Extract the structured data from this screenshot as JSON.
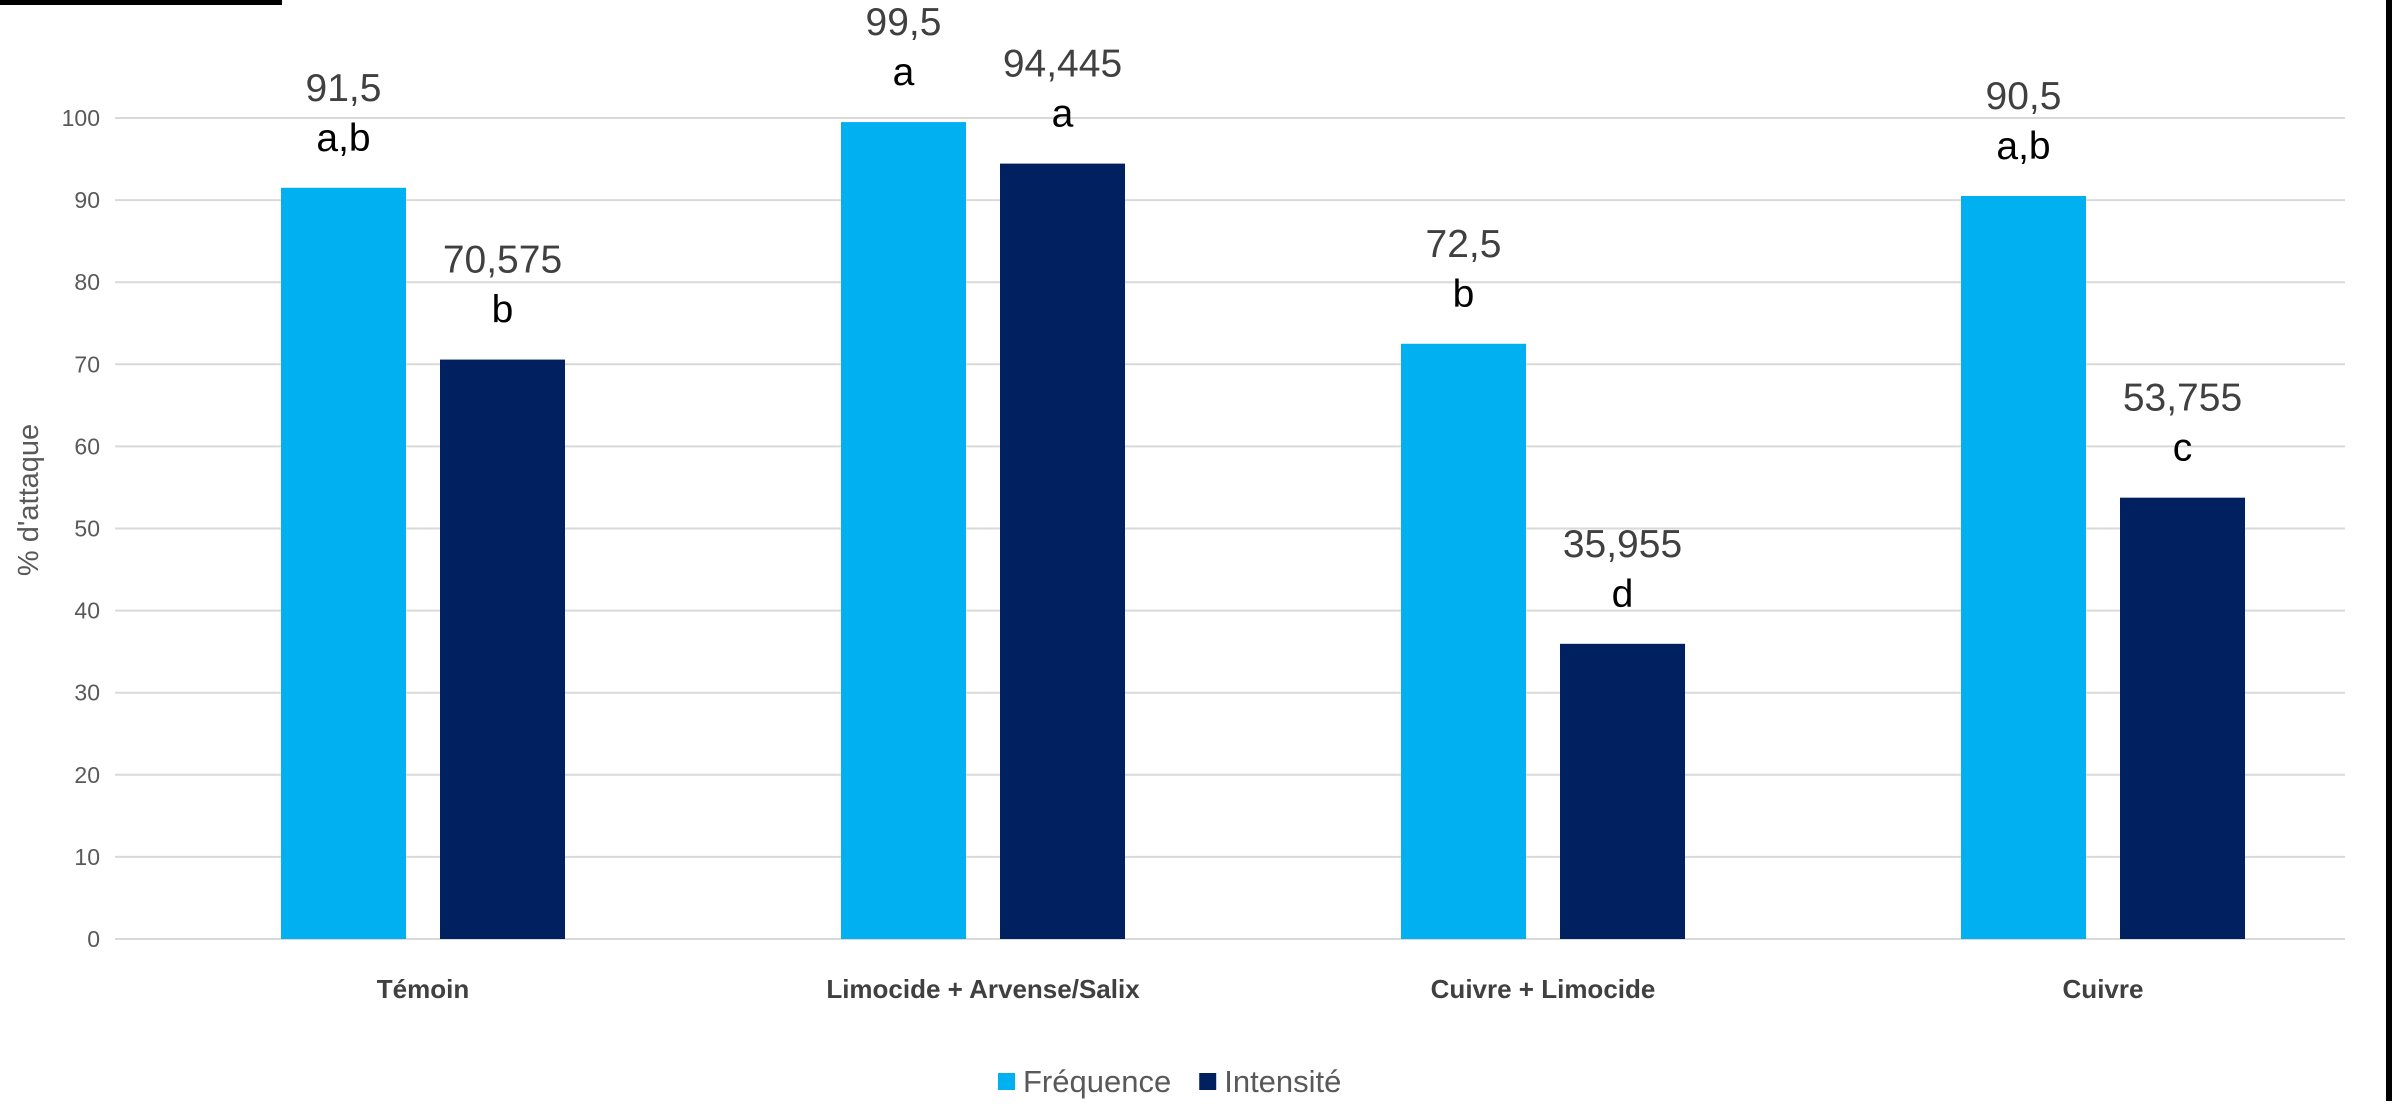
{
  "chart_data": {
    "type": "bar",
    "ylabel": "% d'attaque",
    "ylim": [
      0,
      100
    ],
    "yticks": [
      0,
      10,
      20,
      30,
      40,
      50,
      60,
      70,
      80,
      90,
      100
    ],
    "grid": true,
    "legend_position": "bottom",
    "categories": [
      "Témoin",
      "Limocide + Arvense/Salix",
      "Cuivre + Limocide",
      "Cuivre"
    ],
    "series": [
      {
        "name": "Fréquence",
        "color": "#00b0f0",
        "values": [
          91.5,
          99.5,
          72.5,
          90.5
        ],
        "value_labels": [
          "91,5",
          "99,5",
          "72,5",
          "90,5"
        ],
        "letters": [
          "a,b",
          "a",
          "b",
          "a,b"
        ]
      },
      {
        "name": "Intensité",
        "color": "#002060",
        "values": [
          70.575,
          94.445,
          35.955,
          53.755
        ],
        "value_labels": [
          "70,575",
          "94,445",
          "35,955",
          "53,755"
        ],
        "letters": [
          "b",
          "a",
          "d",
          "c"
        ]
      }
    ]
  }
}
